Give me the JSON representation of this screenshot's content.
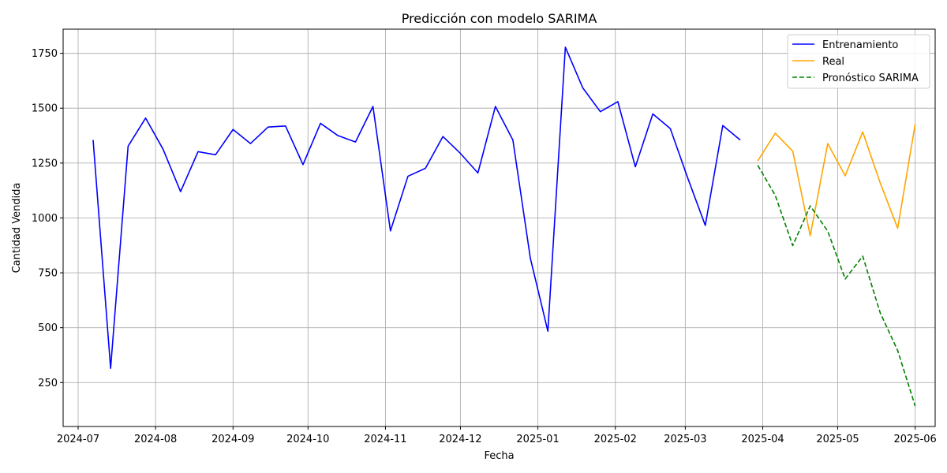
{
  "chart_data": {
    "type": "line",
    "title": "Predicción con modelo SARIMA",
    "xlabel": "Fecha",
    "ylabel": "Cantidad Vendida",
    "ylim": [
      50,
      1860
    ],
    "xlim": [
      "2024-06-25",
      "2025-06-09"
    ],
    "grid": true,
    "legend_position": "top-right",
    "x_ticks": [
      "2024-07",
      "2024-08",
      "2024-09",
      "2024-10",
      "2024-11",
      "2024-12",
      "2025-01",
      "2025-02",
      "2025-03",
      "2025-04",
      "2025-05",
      "2025-06"
    ],
    "y_ticks": [
      250,
      500,
      750,
      1000,
      1250,
      1500,
      1750
    ],
    "series": [
      {
        "name": "Entrenamiento",
        "color": "#0000ff",
        "style": "solid",
        "points": [
          [
            "2024-07-07",
            1355
          ],
          [
            "2024-07-14",
            315
          ],
          [
            "2024-07-21",
            1327
          ],
          [
            "2024-07-28",
            1455
          ],
          [
            "2024-08-04",
            1313
          ],
          [
            "2024-08-11",
            1120
          ],
          [
            "2024-08-18",
            1302
          ],
          [
            "2024-08-25",
            1288
          ],
          [
            "2024-09-01",
            1403
          ],
          [
            "2024-09-08",
            1339
          ],
          [
            "2024-09-15",
            1414
          ],
          [
            "2024-09-22",
            1419
          ],
          [
            "2024-09-29",
            1243
          ],
          [
            "2024-10-06",
            1431
          ],
          [
            "2024-10-13",
            1375
          ],
          [
            "2024-10-20",
            1346
          ],
          [
            "2024-10-27",
            1508
          ],
          [
            "2024-11-03",
            941
          ],
          [
            "2024-11-10",
            1190
          ],
          [
            "2024-11-17",
            1226
          ],
          [
            "2024-11-24",
            1371
          ],
          [
            "2024-12-01",
            1294
          ],
          [
            "2024-12-08",
            1205
          ],
          [
            "2024-12-15",
            1508
          ],
          [
            "2024-12-22",
            1355
          ],
          [
            "2024-12-29",
            816
          ],
          [
            "2025-01-05",
            484
          ],
          [
            "2025-01-12",
            1778
          ],
          [
            "2025-01-19",
            1592
          ],
          [
            "2025-01-26",
            1484
          ],
          [
            "2025-02-02",
            1530
          ],
          [
            "2025-02-09",
            1233
          ],
          [
            "2025-02-16",
            1474
          ],
          [
            "2025-02-23",
            1407
          ],
          [
            "2025-03-02",
            1181
          ],
          [
            "2025-03-09",
            966
          ],
          [
            "2025-03-16",
            1421
          ],
          [
            "2025-03-23",
            1355
          ]
        ]
      },
      {
        "name": "Real",
        "color": "#ffa500",
        "style": "solid",
        "points": [
          [
            "2025-03-30",
            1260
          ],
          [
            "2025-04-06",
            1386
          ],
          [
            "2025-04-13",
            1304
          ],
          [
            "2025-04-20",
            919
          ],
          [
            "2025-04-27",
            1339
          ],
          [
            "2025-05-04",
            1192
          ],
          [
            "2025-05-11",
            1392
          ],
          [
            "2025-05-18",
            1160
          ],
          [
            "2025-05-25",
            953
          ],
          [
            "2025-06-01",
            1427
          ]
        ]
      },
      {
        "name": "Pronóstico SARIMA",
        "color": "#008000",
        "style": "dashed",
        "points": [
          [
            "2025-03-30",
            1240
          ],
          [
            "2025-04-06",
            1103
          ],
          [
            "2025-04-13",
            874
          ],
          [
            "2025-04-20",
            1055
          ],
          [
            "2025-04-27",
            940
          ],
          [
            "2025-05-04",
            722
          ],
          [
            "2025-05-11",
            826
          ],
          [
            "2025-05-18",
            568
          ],
          [
            "2025-05-25",
            396
          ],
          [
            "2025-06-01",
            143
          ]
        ]
      }
    ]
  }
}
